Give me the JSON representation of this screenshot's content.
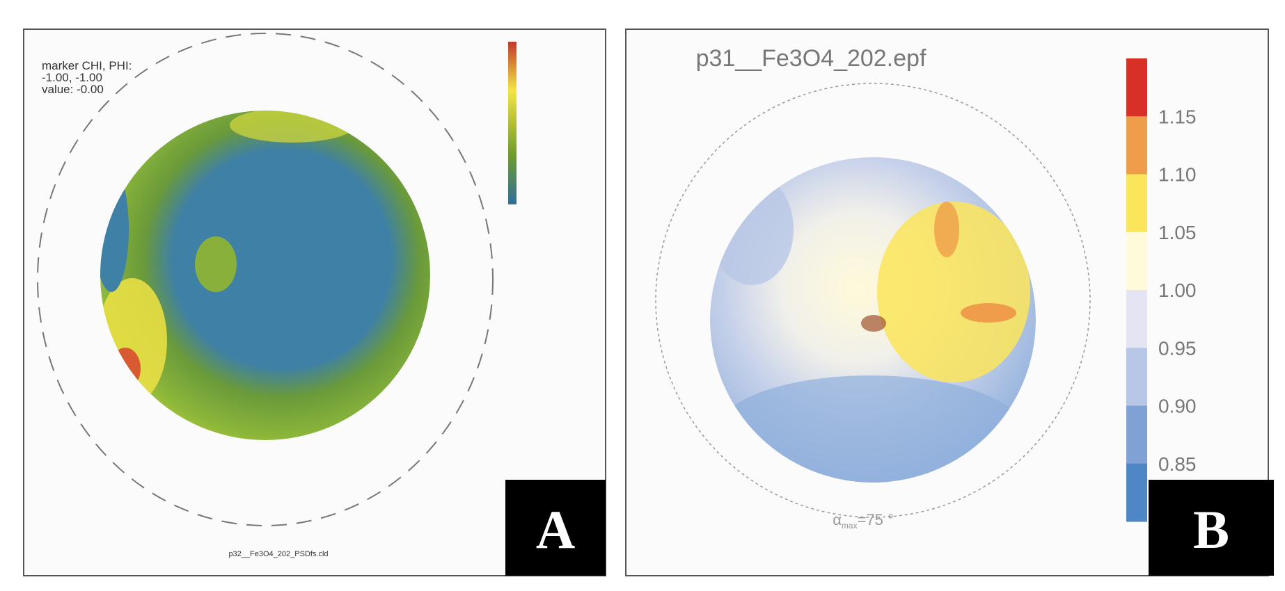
{
  "panels": {
    "a": {
      "label": "A",
      "marker": [
        "marker CHI, PHI:",
        "-1.00, -1.00",
        "value: -0.00"
      ],
      "footer": "p32__Fe3O4_202_PSDfs.cld"
    },
    "b": {
      "label": "B",
      "title": "p31__Fe3O4_202.epf",
      "alpha": {
        "symbol": "α",
        "subscript": "max",
        "value": "=75 °"
      },
      "colorbar": {
        "colors": [
          "#d73027",
          "#ef9d4a",
          "#fbe55a",
          "#fffad9",
          "#e4e4f2",
          "#b8c7e6",
          "#7fa1d3",
          "#4f86c6"
        ],
        "labels": [
          "1.15",
          "1.10",
          "1.05",
          "1.00",
          "0.95",
          "0.90",
          "0.85"
        ]
      }
    }
  }
}
